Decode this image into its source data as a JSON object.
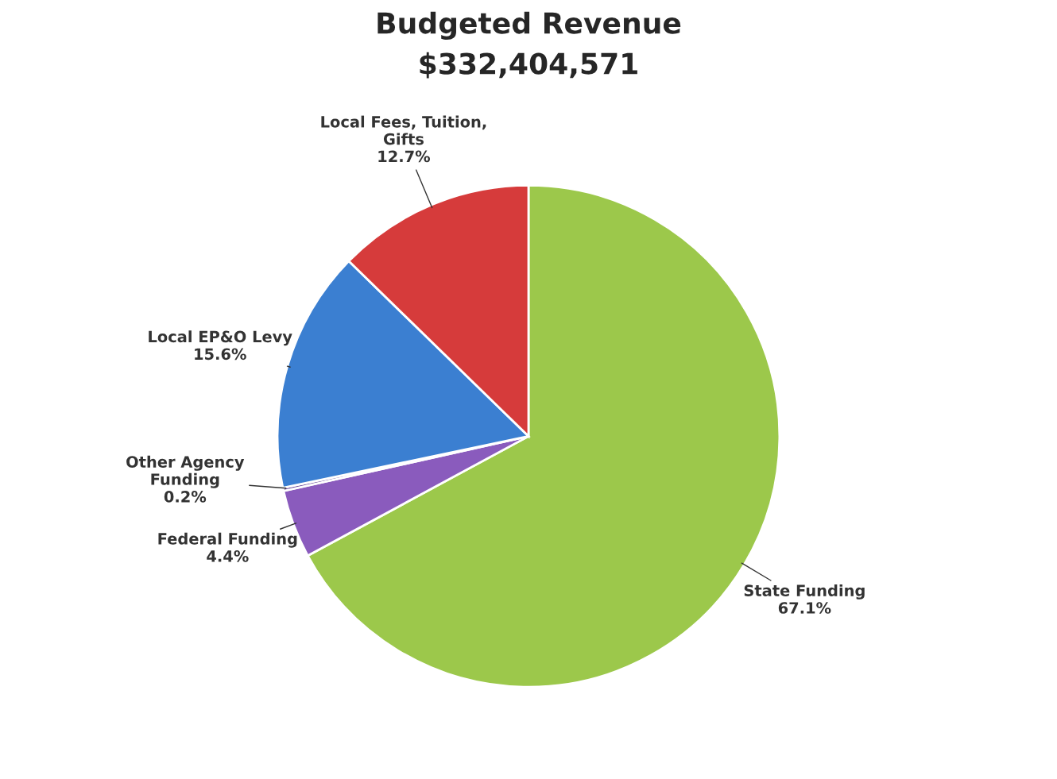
{
  "chart_data": {
    "type": "pie",
    "title": "Budgeted Revenue",
    "subtitle": "$332,404,571",
    "categories": [
      "State Funding",
      "Federal Funding",
      "Other Agency\nFunding",
      "Local EP&O Levy",
      "Local Fees, Tuition,\nGifts"
    ],
    "values": [
      67.1,
      4.4,
      0.2,
      15.6,
      12.7
    ],
    "value_labels": [
      "67.1%",
      "4.4%",
      "0.2%",
      "15.6%",
      "12.7%"
    ],
    "colors": [
      "#9cc84b",
      "#8a5bbd",
      "#6a4a9a",
      "#3b7fd1",
      "#d63b3b"
    ],
    "legend": false
  }
}
